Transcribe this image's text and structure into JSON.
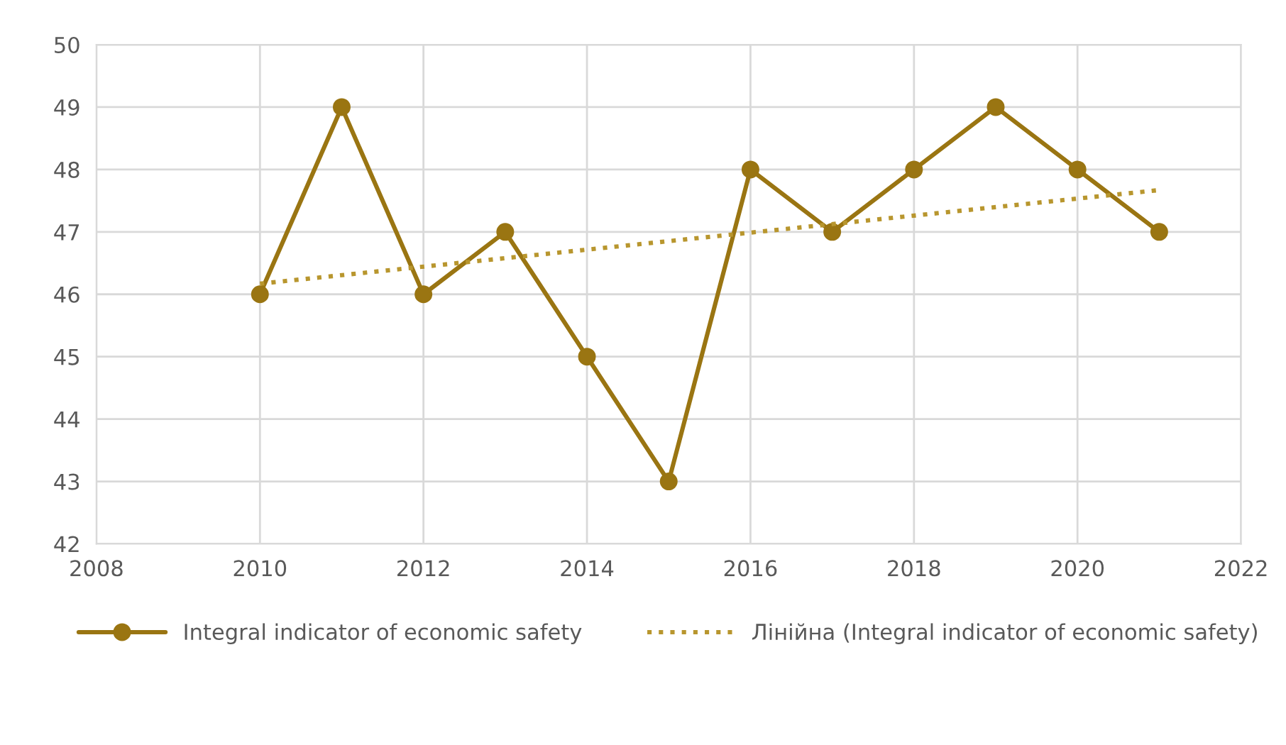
{
  "chart_data": {
    "type": "line",
    "x": [
      2010,
      2011,
      2012,
      2013,
      2014,
      2015,
      2016,
      2017,
      2018,
      2019,
      2020,
      2021
    ],
    "series": [
      {
        "name": "Integral indicator of economic safety",
        "color": "#9a7512",
        "values": [
          46,
          49,
          46,
          47,
          45,
          43,
          48,
          47,
          48,
          49,
          48,
          47
        ],
        "marker": "circle",
        "line_style": "solid"
      },
      {
        "name": "Лінійна (Integral indicator of economic safety)",
        "color": "#b8962e",
        "type": "line",
        "x": [
          2010,
          2021
        ],
        "values": [
          46.17,
          47.67
        ],
        "marker": "none",
        "line_style": "dotted"
      }
    ],
    "xlim": [
      2008,
      2022
    ],
    "xticks": [
      2008,
      2010,
      2012,
      2014,
      2016,
      2018,
      2020,
      2022
    ],
    "ylim": [
      42,
      50
    ],
    "yticks": [
      42,
      43,
      44,
      45,
      46,
      47,
      48,
      49,
      50
    ],
    "grid": true,
    "legend": "bottom"
  }
}
